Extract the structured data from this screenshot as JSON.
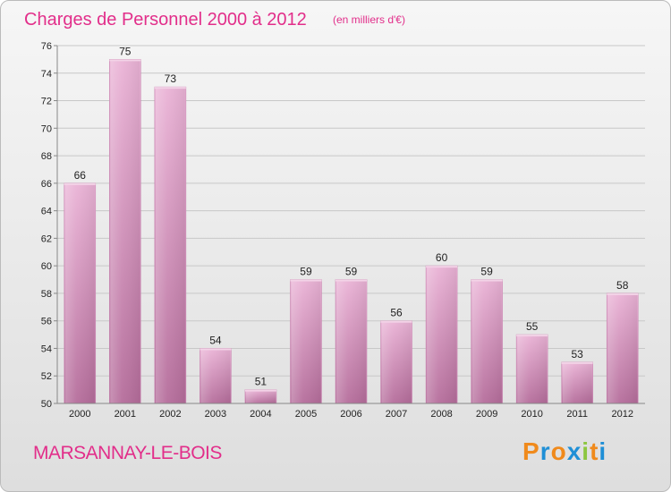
{
  "chart_data": {
    "type": "bar",
    "title": "Charges de Personnel 2000 à 2012",
    "subtitle": "(en milliers d'€)",
    "categories": [
      "2000",
      "2001",
      "2002",
      "2003",
      "2004",
      "2005",
      "2006",
      "2007",
      "2008",
      "2009",
      "2010",
      "2011",
      "2012"
    ],
    "values": [
      66,
      75,
      73,
      54,
      51,
      59,
      59,
      56,
      60,
      59,
      55,
      53,
      58
    ],
    "ylim": [
      50,
      76
    ],
    "yticks": [
      50,
      52,
      54,
      56,
      58,
      60,
      62,
      64,
      66,
      68,
      70,
      72,
      74,
      76
    ],
    "xlabel": "",
    "ylabel": "",
    "grid": true,
    "bar_color": "#d98fbf"
  },
  "commune": "MARSANNAY-LE-BOIS",
  "logo": {
    "letters": [
      "P",
      "r",
      "o",
      "x",
      "i",
      "t",
      "i"
    ],
    "colors": [
      "#f08a1c",
      "#1f8fd6",
      "#f08a1c",
      "#1f8fd6",
      "#8cc63f",
      "#f08a1c",
      "#1f8fd6"
    ]
  }
}
